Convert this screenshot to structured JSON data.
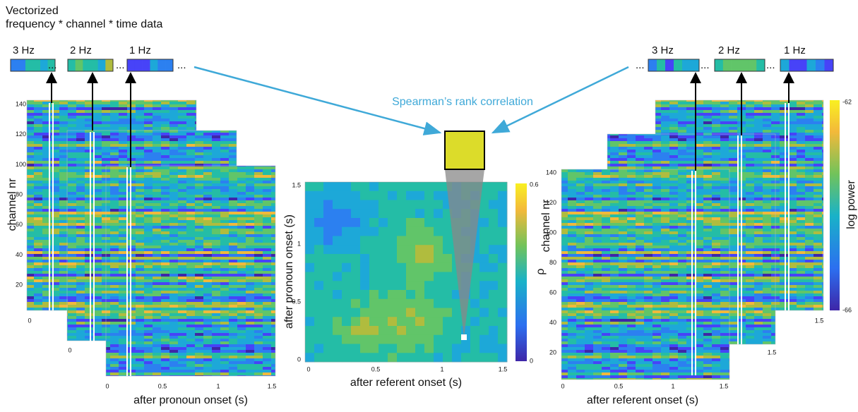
{
  "header": {
    "line1": "Vectorized",
    "line2": "frequency * channel * time data"
  },
  "left": {
    "bands": [
      "3 Hz",
      "2 Hz",
      "1 Hz"
    ],
    "ellipsis": "...",
    "y_label": "channel nr",
    "y_ticks": [
      "140",
      "120",
      "100",
      "80",
      "60",
      "40",
      "20"
    ],
    "x_ticks": [
      "0",
      "0.5",
      "1",
      "1.5"
    ],
    "back_x_ticks": [
      "0",
      "0"
    ],
    "x_label": "after pronoun onset (s)"
  },
  "center": {
    "caption": "Spearman’s rank correlation",
    "y_label": "after pronoun onset (s)",
    "x_label": "after referent onset (s)",
    "y_ticks": [
      "1.5",
      "1",
      "0.5",
      "0"
    ],
    "x_ticks": [
      "0",
      "0.5",
      "1",
      "1.5"
    ],
    "colorbar": {
      "max": "0.6",
      "min": "0",
      "label": "ρ"
    }
  },
  "right": {
    "bands": [
      "3 Hz",
      "2 Hz",
      "1 Hz"
    ],
    "ellipsis": "...",
    "y_label": "channel nr",
    "y_ticks": [
      "140",
      "120",
      "100",
      "80",
      "60",
      "40",
      "20"
    ],
    "x_ticks": [
      "0",
      "0.5",
      "1",
      "1.5"
    ],
    "back_x_ticks": [
      "1.5",
      "1.5"
    ],
    "x_label": "after referent onset (s)",
    "colorbar": {
      "max": "-62",
      "min": "-66",
      "label": "log power"
    }
  }
}
